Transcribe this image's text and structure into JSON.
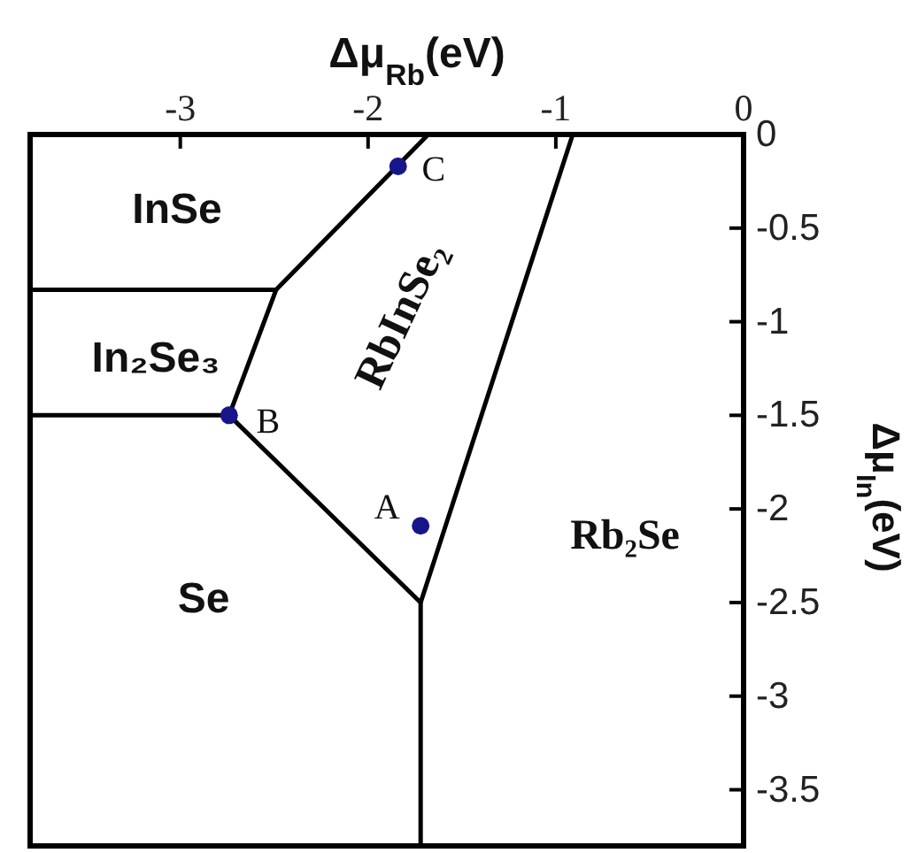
{
  "chart_data": {
    "type": "line",
    "xlabel": "Δμ$_{Rb}$(eV)",
    "ylabel": "Δμ$_{In}$(eV)",
    "xlim": [
      -3.8,
      0
    ],
    "ylim": [
      -3.8,
      0
    ],
    "xticks": [
      -3,
      -2,
      -1,
      0
    ],
    "yticks": [
      0,
      -0.5,
      -1,
      -1.5,
      -2,
      -2.5,
      -3,
      -3.5
    ],
    "series": [
      {
        "color": "#000000",
        "x": [
          -3.8,
          -2.49,
          -1.68
        ],
        "values": [
          -0.83,
          -0.83,
          0
        ]
      },
      {
        "color": "#000000",
        "x": [
          -2.49,
          -2.74,
          -1.72,
          -0.91
        ],
        "values": [
          -0.83,
          -1.5,
          -2.5,
          0
        ]
      },
      {
        "color": "#000000",
        "x": [
          -3.8,
          -2.74
        ],
        "values": [
          -1.5,
          -1.5
        ]
      },
      {
        "color": "#000000",
        "x": [
          -1.72,
          -1.72
        ],
        "values": [
          -2.5,
          -3.8
        ]
      },
      {
        "type": "scatter",
        "marker": "circle",
        "color": "#16168a",
        "x": [
          -1.72,
          -2.74,
          -1.84
        ],
        "values": [
          -2.09,
          -1.5,
          -0.17
        ]
      }
    ],
    "annotations": [
      "InSe",
      "In₂Se₃",
      "RbInSe₂",
      "Rb₂Se",
      "Se",
      {
        "text": "A",
        "x": -1.72,
        "y": -2.09
      },
      {
        "text": "B",
        "x": -2.74,
        "y": -1.5
      },
      {
        "text": "C",
        "x": -1.84,
        "y": -0.17
      }
    ]
  }
}
